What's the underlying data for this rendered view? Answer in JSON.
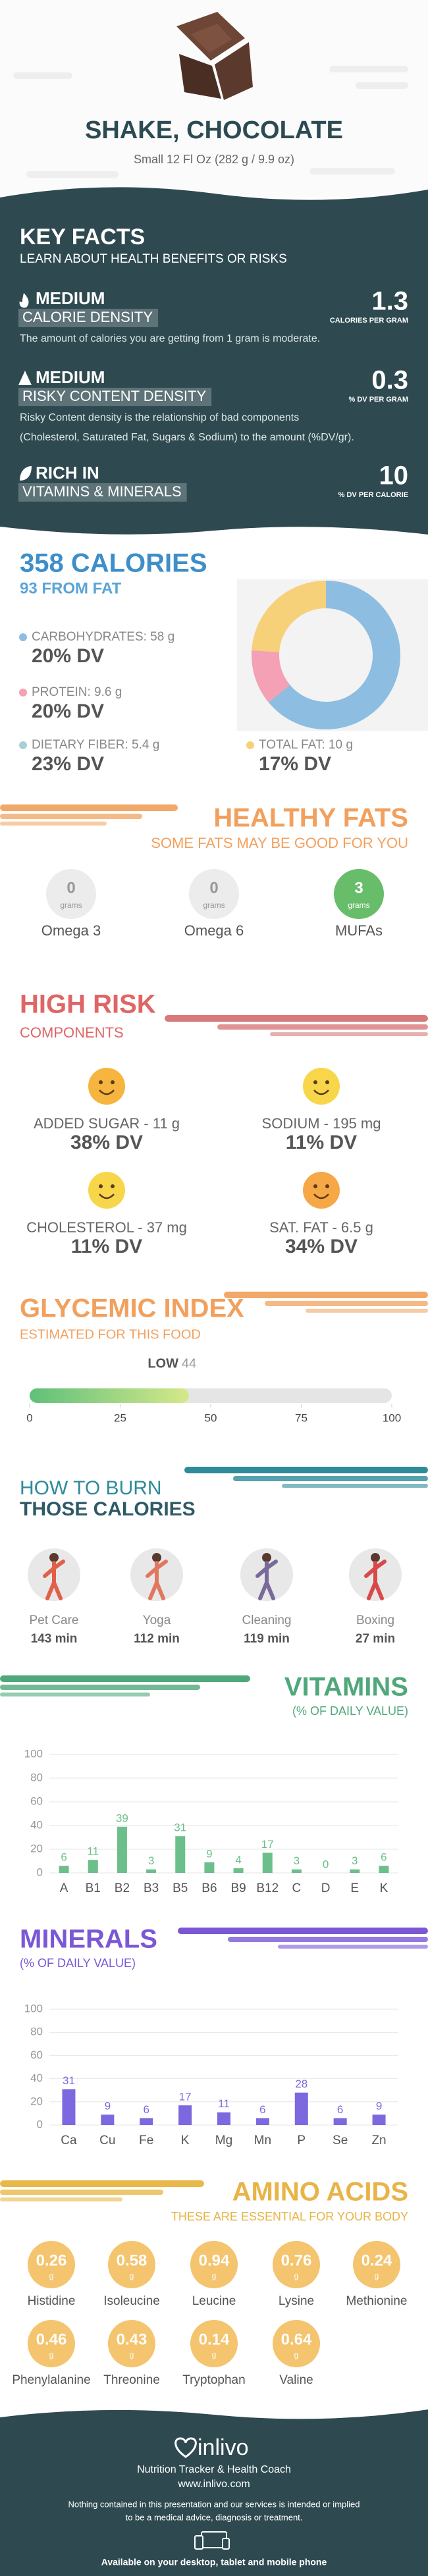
{
  "header": {
    "title": "SHAKE, CHOCOLATE",
    "subtitle": "Small 12 Fl Oz (282 g / 9.9 oz)"
  },
  "key_facts": {
    "title": "KEY FACTS",
    "subtitle": "LEARN ABOUT HEALTH BENEFITS OR RISKS",
    "items": [
      {
        "level": "MEDIUM",
        "label": "CALORIE DENSITY",
        "value": 1.3,
        "unit": "CALORIES PER GRAM",
        "description": [
          "The amount of calories you are getting from 1 gram is moderate."
        ]
      },
      {
        "level": "MEDIUM",
        "label": "RISKY CONTENT DENSITY",
        "value": 0.3,
        "unit": "% DV PER GRAM",
        "description": [
          "Risky Content density is the relationship of bad components",
          "(Cholesterol, Saturated Fat, Sugars & Sodium) to the amount (%DV/gr)."
        ]
      },
      {
        "level": "RICH IN",
        "label": "VITAMINS & MINERALS",
        "value": 10,
        "unit": "% DV PER CALORIE"
      }
    ]
  },
  "calories": {
    "title": "358 CALORIES",
    "subtitle": "93 FROM FAT",
    "nutrients": [
      {
        "label": "CARBOHYDRATES: 58 g",
        "dv": "20% DV",
        "color": "#8dbde0"
      },
      {
        "label": "PROTEIN: 9.6 g",
        "dv": "20% DV",
        "color": "#f4a0b5"
      },
      {
        "label": "DIETARY FIBER: 5.4 g",
        "dv": "23% DV",
        "color": "#a9cfd8"
      },
      {
        "label": "TOTAL FAT: 10 g",
        "dv": "17% DV",
        "color": "#f7d07a"
      }
    ],
    "breakdown": {
      "values": [
        64,
        12,
        24
      ],
      "colors": [
        "#8dbde0",
        "#f4a0b5",
        "#f7d07a"
      ]
    }
  },
  "healthy_fats": {
    "title": "HEALTHY FATS",
    "subtitle": "SOME FATS MAY BE GOOD FOR YOU",
    "unit": "grams",
    "items": [
      {
        "name": "Omega 3",
        "value": 0,
        "color": "#ececec"
      },
      {
        "name": "Omega 6",
        "value": 0,
        "color": "#ececec"
      },
      {
        "name": "MUFAs",
        "value": 3,
        "color": "#68bd6a"
      }
    ]
  },
  "high_risk": {
    "title": "HIGH RISK",
    "subtitle": "COMPONENTS",
    "items": [
      {
        "label": "ADDED SUGAR - 11 g",
        "dv": "38% DV",
        "color": "#f5b53f"
      },
      {
        "label": "SODIUM - 195 mg",
        "dv": "11% DV",
        "color": "#f7d64a"
      },
      {
        "label": "CHOLESTEROL - 37 mg",
        "dv": "11% DV",
        "color": "#f7d64a"
      },
      {
        "label": "SAT. FAT - 6.5 g",
        "dv": "34% DV",
        "color": "#f5a845"
      }
    ]
  },
  "glycemic": {
    "title": "GLYCEMIC INDEX",
    "subtitle": "ESTIMATED FOR THIS FOOD",
    "level": "LOW",
    "value": 44,
    "xlim": [
      0,
      100
    ],
    "xticks": [
      0,
      25,
      50,
      75,
      100
    ]
  },
  "burn": {
    "title": [
      "HOW TO BURN",
      "THOSE CALORIES"
    ],
    "activities": [
      {
        "name": "Pet Care",
        "time": "143 min"
      },
      {
        "name": "Yoga",
        "time": "112 min"
      },
      {
        "name": "Cleaning",
        "time": "119 min"
      },
      {
        "name": "Boxing",
        "time": "27 min"
      }
    ]
  },
  "vitamins": {
    "title": "VITAMINS",
    "subtitle": "(% OF DAILY VALUE)",
    "categories": [
      "A",
      "B1",
      "B2",
      "B3",
      "B5",
      "B6",
      "B9",
      "B12",
      "C",
      "D",
      "E",
      "K"
    ],
    "values": [
      6,
      11,
      39,
      3,
      31,
      9,
      4,
      17,
      3,
      0,
      3,
      6
    ],
    "ylim": [
      0,
      100
    ],
    "yticks": [
      0,
      20,
      40,
      60,
      80,
      100
    ],
    "color": "#6cbf8a"
  },
  "minerals": {
    "title": "MINERALS",
    "subtitle": "(% OF DAILY VALUE)",
    "categories": [
      "Ca",
      "Cu",
      "Fe",
      "K",
      "Mg",
      "Mn",
      "P",
      "Se",
      "Zn"
    ],
    "values": [
      31,
      9,
      6,
      17,
      11,
      6,
      28,
      6,
      9
    ],
    "ylim": [
      0,
      100
    ],
    "yticks": [
      0,
      20,
      40,
      60,
      80,
      100
    ],
    "color": "#7e68e0"
  },
  "amino_acids": {
    "title": "AMINO ACIDS",
    "subtitle": "THESE ARE ESSENTIAL FOR YOUR BODY",
    "unit": "g",
    "items": [
      {
        "name": "Histidine",
        "value": 0.26
      },
      {
        "name": "Isoleucine",
        "value": 0.58
      },
      {
        "name": "Leucine",
        "value": 0.94
      },
      {
        "name": "Lysine",
        "value": 0.76
      },
      {
        "name": "Methionine",
        "value": 0.24
      },
      {
        "name": "Phenylalanine",
        "value": 0.46
      },
      {
        "name": "Threonine",
        "value": 0.43
      },
      {
        "name": "Tryptophan",
        "value": 0.14
      },
      {
        "name": "Valine",
        "value": 0.64
      }
    ]
  },
  "footer": {
    "brand": "inlivo",
    "tagline": "Nutrition Tracker & Health Coach",
    "url": "www.inlivo.com",
    "disclaimer": [
      "Nothing contained in this presentation and our services is intended or implied",
      "to be a medical advice, diagnosis or treatment."
    ],
    "availability": "Available on your desktop, tablet and mobile phone"
  }
}
